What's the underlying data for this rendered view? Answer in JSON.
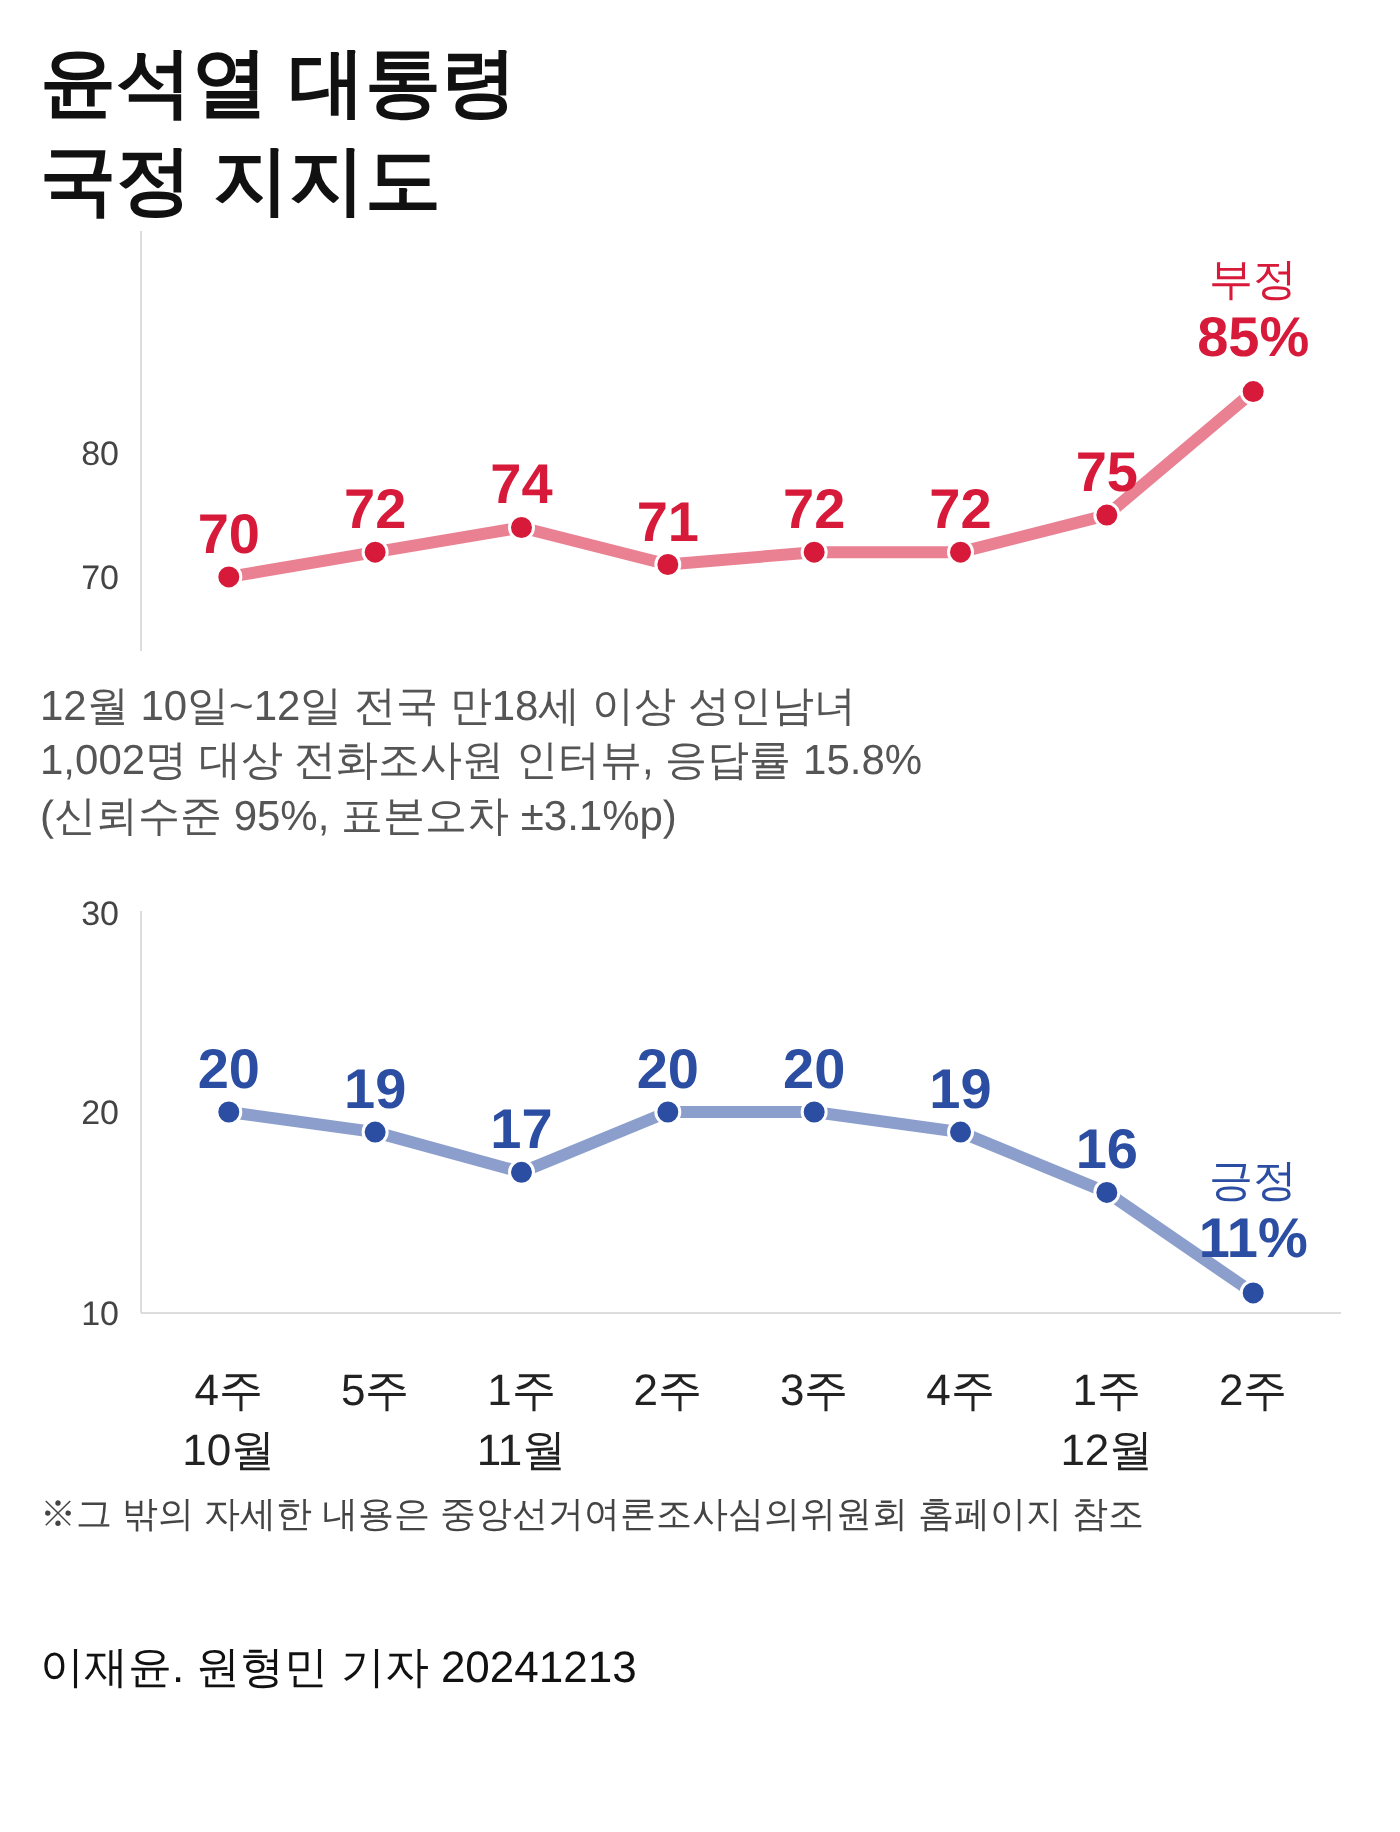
{
  "chart_data": [
    {
      "type": "line",
      "title": "윤석열 대통령\n국정 지지도",
      "categories": [
        null,
        null,
        null,
        null,
        null,
        null,
        null,
        null
      ],
      "series": [
        {
          "name": "부정",
          "color": "#d7193a",
          "values": [
            70,
            72,
            74,
            71,
            72,
            72,
            75,
            85
          ],
          "value_labels": [
            "70",
            "72",
            "74",
            "71",
            "72",
            "72",
            "75",
            "85%"
          ]
        }
      ],
      "ylim": [
        64,
        98
      ],
      "yticks": [
        70,
        80
      ],
      "tick_labels": "y",
      "grid": false,
      "marker": "circle",
      "line_style": "solid",
      "annotations": [
        "12월 10일~12일 전국 만18세 이상 성인남녀\n1,002명 대상 전화조사원 인터뷰, 응답률 15.8%\n(신뢰수준 95%, 표본오차 ±3.1%p)"
      ]
    },
    {
      "type": "line",
      "categories": [
        "4주\n10월",
        "5주",
        "1주\n11월",
        "2주",
        "3주",
        "4주",
        "1주\n12월",
        "2주"
      ],
      "series": [
        {
          "name": "긍정",
          "color": "#2b4ea2",
          "values": [
            20,
            19,
            17,
            20,
            20,
            19,
            16,
            11
          ],
          "value_labels": [
            "20",
            "19",
            "17",
            "20",
            "20",
            "19",
            "16",
            "11%"
          ]
        }
      ],
      "ylim": [
        10,
        30
      ],
      "yticks": [
        10,
        20,
        30
      ],
      "grid": false,
      "marker": "circle",
      "line_style": "solid",
      "annotations": [
        "※그 밖의 자세한 내용은 중앙선거여론조사심의위원회 홈페이지 참조",
        "이재윤. 원형민 기자 20241213"
      ]
    }
  ]
}
